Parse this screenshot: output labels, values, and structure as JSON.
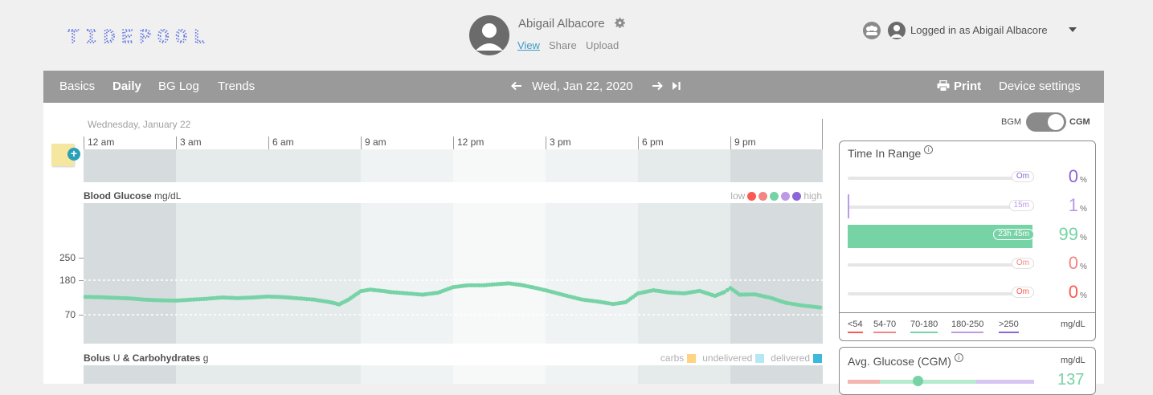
{
  "header": {
    "logo_text": "TIDEPOOL",
    "patient_name": "Abigail Albacore",
    "links": {
      "view": "View",
      "share": "Share",
      "upload": "Upload"
    },
    "logged_in": "Logged in as Abigail Albacore",
    "icons": [
      "settings-gear-icon",
      "care-team-icon",
      "user-avatar-icon",
      "caret-down-icon"
    ]
  },
  "nav": {
    "tabs": [
      "Basics",
      "Daily",
      "BG Log",
      "Trends"
    ],
    "active_tab": "Daily",
    "date": "Wed, Jan 22, 2020",
    "print": "Print",
    "device_settings": "Device settings"
  },
  "daily": {
    "date_label": "Wednesday, January 22",
    "time_ticks": [
      "12 am",
      "3 am",
      "6 am",
      "9 am",
      "12 pm",
      "3 pm",
      "6 pm",
      "9 pm"
    ],
    "bg_title": "Blood Glucose",
    "bg_units": "mg/dL",
    "bg_legend_low": "low",
    "bg_legend_high": "high",
    "bg_y_ticks": [
      "250",
      "180",
      "70"
    ],
    "bolus_title_a": "Bolus",
    "bolus_unit_a": "U",
    "bolus_title_b": "& Carbohydrates",
    "bolus_unit_b": "g",
    "bolus_legend": {
      "carbs": "carbs",
      "undelivered": "undelivered",
      "delivered": "delivered"
    }
  },
  "chart_data": {
    "type": "scatter",
    "title": "Blood Glucose",
    "ylabel": "mg/dL",
    "xlabel": "",
    "x_unit": "hour of day",
    "xlim": [
      0,
      24
    ],
    "ylim": [
      40,
      300
    ],
    "target_range": [
      70,
      180
    ],
    "colors": {
      "veryLow": "#fb5951",
      "low": "#f28684",
      "target": "#76d3a6",
      "high": "#bb9ae7",
      "veryHigh": "#8c65d6"
    },
    "points": [
      [
        0.0,
        127
      ],
      [
        0.5,
        126
      ],
      [
        1.0,
        124
      ],
      [
        1.5,
        122
      ],
      [
        2.0,
        118
      ],
      [
        2.5,
        116
      ],
      [
        3.0,
        115
      ],
      [
        3.5,
        118
      ],
      [
        4.0,
        121
      ],
      [
        4.5,
        125
      ],
      [
        5.0,
        123
      ],
      [
        5.5,
        125
      ],
      [
        6.0,
        128
      ],
      [
        6.5,
        126
      ],
      [
        7.0,
        122
      ],
      [
        7.5,
        118
      ],
      [
        8.0,
        110
      ],
      [
        8.3,
        103
      ],
      [
        8.6,
        118
      ],
      [
        9.0,
        145
      ],
      [
        9.3,
        150
      ],
      [
        9.7,
        146
      ],
      [
        10.0,
        142
      ],
      [
        10.5,
        138
      ],
      [
        11.0,
        134
      ],
      [
        11.5,
        140
      ],
      [
        12.0,
        158
      ],
      [
        12.5,
        164
      ],
      [
        13.0,
        164
      ],
      [
        13.5,
        168
      ],
      [
        13.8,
        170
      ],
      [
        14.2,
        165
      ],
      [
        14.7,
        155
      ],
      [
        15.2,
        143
      ],
      [
        15.7,
        130
      ],
      [
        16.2,
        118
      ],
      [
        16.7,
        112
      ],
      [
        17.2,
        104
      ],
      [
        17.6,
        110
      ],
      [
        18.0,
        138
      ],
      [
        18.5,
        148
      ],
      [
        19.0,
        141
      ],
      [
        19.5,
        138
      ],
      [
        20.0,
        146
      ],
      [
        20.5,
        130
      ],
      [
        20.8,
        142
      ],
      [
        21.0,
        155
      ],
      [
        21.3,
        134
      ],
      [
        21.8,
        135
      ],
      [
        22.3,
        124
      ],
      [
        22.8,
        108
      ],
      [
        23.3,
        100
      ],
      [
        24.0,
        92
      ]
    ]
  },
  "sidebar": {
    "toggle": {
      "left": "BGM",
      "right": "CGM",
      "selected": "CGM"
    },
    "tir": {
      "title": "Time In Range",
      "rows": [
        {
          "label": "Om",
          "percent": "0",
          "fraction": 0.0,
          "color": "#8c65d6"
        },
        {
          "label": "15m",
          "percent": "1",
          "fraction": 0.01,
          "color": "#bb9ae7"
        },
        {
          "label": "23h 45m",
          "percent": "99",
          "fraction": 0.99,
          "color": "#76d3a6"
        },
        {
          "label": "Om",
          "percent": "0",
          "fraction": 0.0,
          "color": "#f28684"
        },
        {
          "label": "Om",
          "percent": "0",
          "fraction": 0.0,
          "color": "#fb5951"
        }
      ],
      "pct_sign": "%",
      "ranges": [
        {
          "label": "<54",
          "color": "#fb5951"
        },
        {
          "label": "54-70",
          "color": "#f28684"
        },
        {
          "label": "70-180",
          "color": "#76d3a6"
        },
        {
          "label": "180-250",
          "color": "#bb9ae7"
        },
        {
          "label": ">250",
          "color": "#8c65d6"
        }
      ],
      "units": "mg/dL"
    },
    "avg": {
      "title": "Avg. Glucose (CGM)",
      "units": "mg/dL",
      "value": "137"
    }
  }
}
